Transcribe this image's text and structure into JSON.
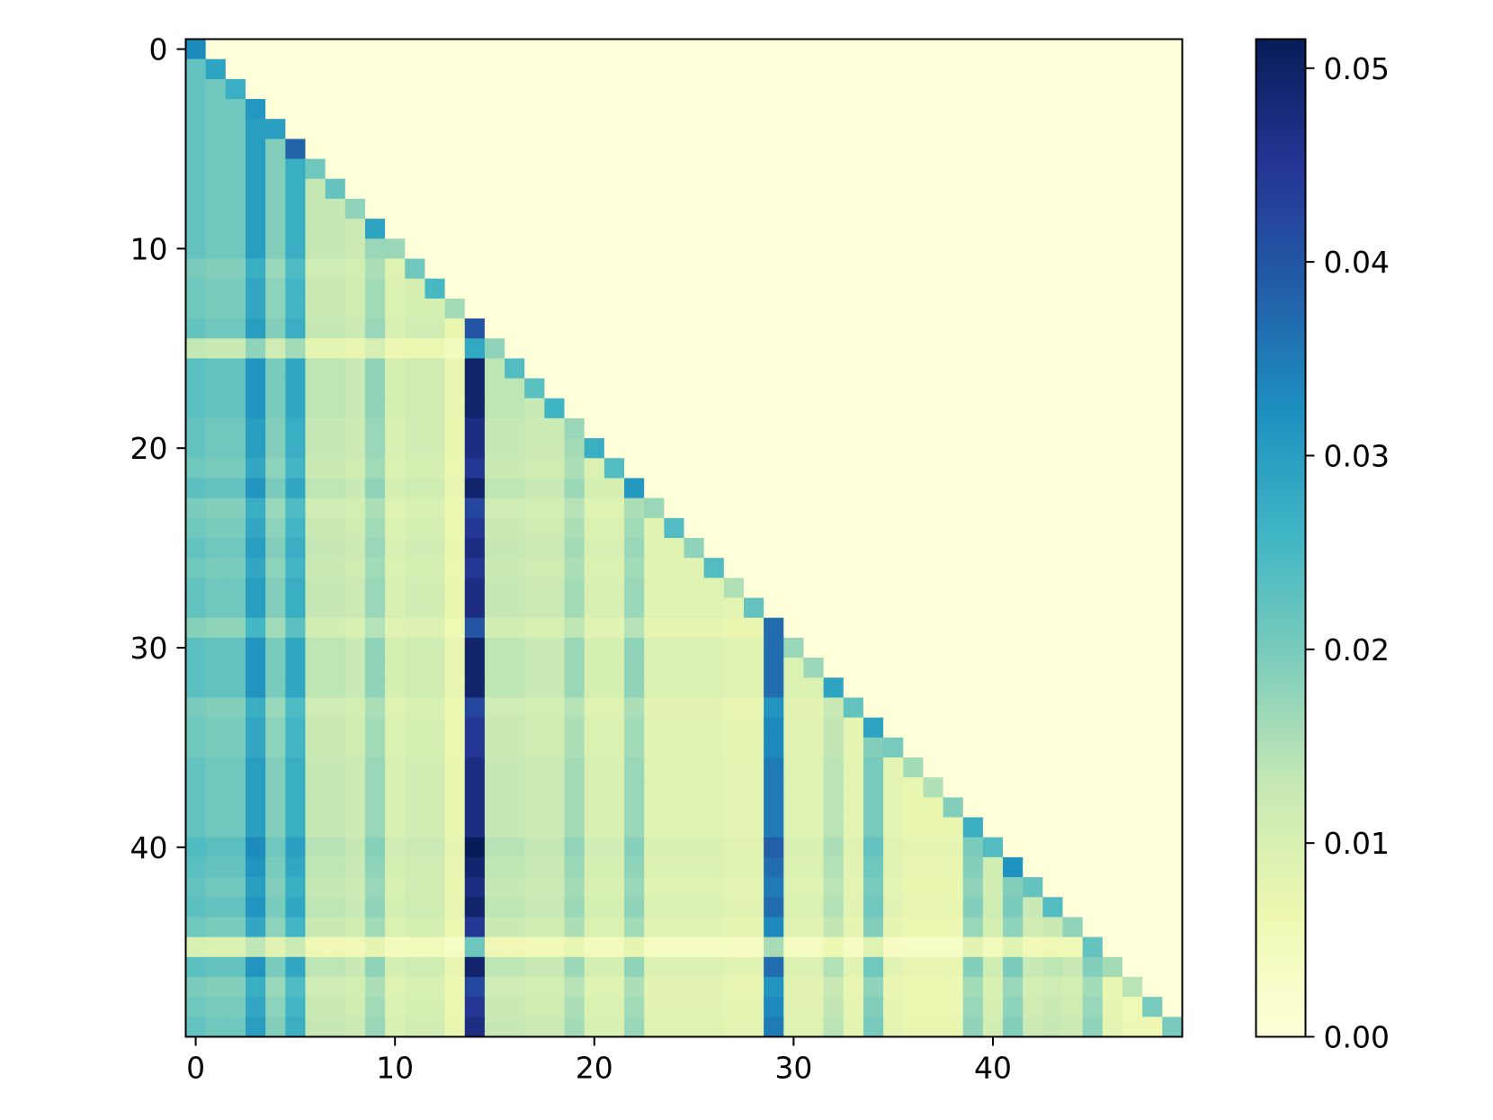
{
  "chart_data": {
    "type": "heatmap",
    "title": "",
    "xlabel": "",
    "ylabel": "",
    "size": 50,
    "lower_triangular": true,
    "x_ticks": [
      0,
      10,
      20,
      30,
      40
    ],
    "y_ticks": [
      0,
      10,
      20,
      30,
      40
    ],
    "x_tick_labels": [
      "0",
      "10",
      "20",
      "30",
      "40"
    ],
    "y_tick_labels": [
      "0",
      "10",
      "20",
      "30",
      "40"
    ],
    "colorbar": {
      "colormap": "YlGnBu",
      "range": [
        0.0,
        0.0515
      ],
      "ticks": [
        0.0,
        0.01,
        0.02,
        0.03,
        0.04,
        0.05
      ],
      "tick_labels": [
        "0.00",
        "0.01",
        "0.02",
        "0.03",
        "0.04",
        "0.05"
      ],
      "stops": [
        "#ffffd9",
        "#edf8b1",
        "#c7e9b4",
        "#7fcdbb",
        "#41b6c4",
        "#1d91c0",
        "#225ea8",
        "#253494",
        "#081d58"
      ]
    },
    "column_weights": [
      0.022,
      0.021,
      0.021,
      0.03,
      0.019,
      0.027,
      0.013,
      0.013,
      0.012,
      0.017,
      0.01,
      0.011,
      0.011,
      0.007,
      0.047,
      0.013,
      0.013,
      0.012,
      0.012,
      0.016,
      0.01,
      0.01,
      0.017,
      0.009,
      0.009,
      0.009,
      0.009,
      0.008,
      0.008,
      0.035,
      0.009,
      0.009,
      0.014,
      0.008,
      0.02,
      0.008,
      0.007,
      0.007,
      0.007,
      0.018,
      0.011,
      0.019,
      0.012,
      0.013,
      0.012,
      0.018,
      0.008,
      0.006,
      0.006,
      0.006
    ],
    "row_scale": [
      1.0,
      1.0,
      1.0,
      1.0,
      1.0,
      1.0,
      1.0,
      1.0,
      1.0,
      1.0,
      1.0,
      0.9,
      0.95,
      0.95,
      1.0,
      0.6,
      1.05,
      1.05,
      1.05,
      1.0,
      1.0,
      0.95,
      1.05,
      0.9,
      0.95,
      1.0,
      0.95,
      1.0,
      1.0,
      0.85,
      1.05,
      1.05,
      1.05,
      0.9,
      0.95,
      0.95,
      1.0,
      1.0,
      1.0,
      1.0,
      1.1,
      1.05,
      1.0,
      1.05,
      0.95,
      0.45,
      1.05,
      0.9,
      0.95,
      1.0
    ],
    "diagonal": [
      0.033,
      0.029,
      0.027,
      0.031,
      0.03,
      0.038,
      0.021,
      0.022,
      0.018,
      0.029,
      0.017,
      0.021,
      0.025,
      0.016,
      0.04,
      0.018,
      0.024,
      0.023,
      0.026,
      0.017,
      0.027,
      0.024,
      0.031,
      0.017,
      0.024,
      0.018,
      0.024,
      0.015,
      0.022,
      0.037,
      0.017,
      0.017,
      0.029,
      0.022,
      0.029,
      0.02,
      0.016,
      0.015,
      0.019,
      0.027,
      0.024,
      0.032,
      0.022,
      0.024,
      0.018,
      0.022,
      0.016,
      0.014,
      0.02,
      0.02
    ]
  }
}
